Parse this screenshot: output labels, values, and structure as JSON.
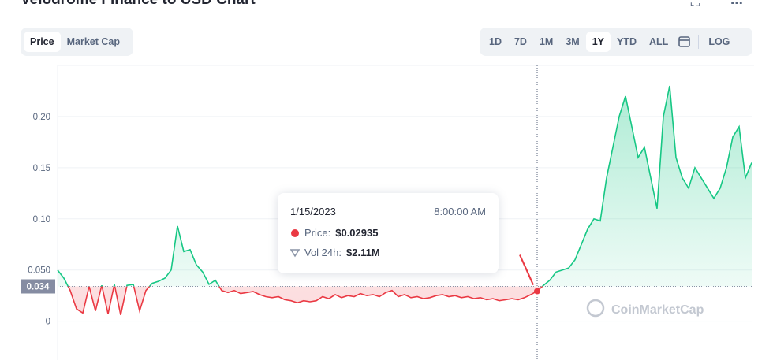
{
  "header": {
    "title": "Velodrome Finance to USD Chart",
    "tabs": [
      "Price",
      "Market Cap"
    ],
    "ranges": [
      "1D",
      "7D",
      "1M",
      "3M",
      "1Y",
      "YTD",
      "ALL"
    ],
    "log": "LOG"
  },
  "chart_data": {
    "type": "line",
    "values": [
      0.05,
      0.042,
      0.03,
      0.012,
      0.008,
      0.034,
      0.01,
      0.035,
      0.007,
      0.036,
      0.006,
      0.035,
      0.036,
      0.01,
      0.03,
      0.037,
      0.039,
      0.042,
      0.05,
      0.093,
      0.068,
      0.07,
      0.055,
      0.048,
      0.036,
      0.04,
      0.03,
      0.028,
      0.03,
      0.027,
      0.028,
      0.029,
      0.026,
      0.024,
      0.023,
      0.024,
      0.021,
      0.02,
      0.018,
      0.02,
      0.019,
      0.02,
      0.024,
      0.022,
      0.026,
      0.023,
      0.025,
      0.024,
      0.027,
      0.025,
      0.026,
      0.024,
      0.028,
      0.03,
      0.024,
      0.026,
      0.023,
      0.024,
      0.022,
      0.023,
      0.025,
      0.026,
      0.024,
      0.025,
      0.023,
      0.024,
      0.022,
      0.023,
      0.021,
      0.022,
      0.02,
      0.021,
      0.022,
      0.021,
      0.023,
      0.026,
      0.02935,
      0.035,
      0.04,
      0.048,
      0.05,
      0.052,
      0.06,
      0.075,
      0.09,
      0.1,
      0.098,
      0.14,
      0.17,
      0.2,
      0.22,
      0.19,
      0.16,
      0.17,
      0.14,
      0.11,
      0.2,
      0.23,
      0.16,
      0.14,
      0.13,
      0.15,
      0.14,
      0.13,
      0.12,
      0.13,
      0.15,
      0.18,
      0.19,
      0.14,
      0.155
    ],
    "color": "#16c784",
    "color_below": "#ea3943",
    "baseline": 0.034,
    "ylim": [
      -0.038,
      0.25
    ],
    "yticks": [
      0,
      {
        "value": 0.05,
        "label": "0.050"
      },
      {
        "value": 0.1,
        "label": "0.10"
      },
      0.15,
      {
        "value": 0.2,
        "label": "0.20"
      }
    ],
    "grid": true,
    "watermark": "CoinMarketCap",
    "tooltip": {
      "date": "1/15/2023",
      "time": "8:00:00 AM",
      "price_label": "Price:",
      "price": "$0.02935",
      "volume_label": "Vol 24h:",
      "volume": "$2.11M"
    }
  }
}
